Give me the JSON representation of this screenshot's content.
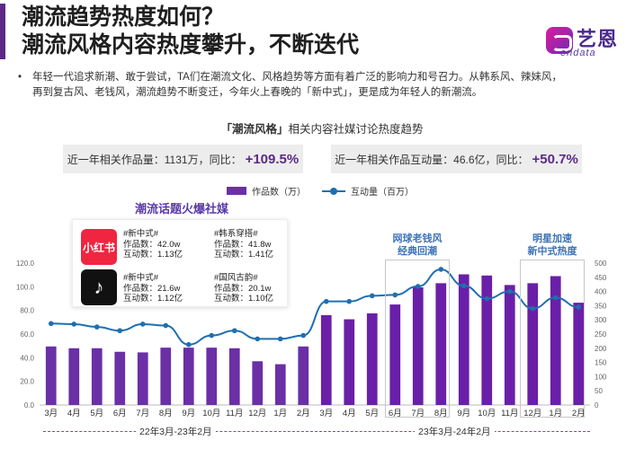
{
  "page": {
    "title_line1": "潮流趋势热度如何？",
    "title_line2": "潮流风格内容热度攀升，不断迭代",
    "logo_cn": "艺恩",
    "logo_en": "endata",
    "bullet_marker": "•",
    "bullet_line1": "年轻一代追求新潮、敢于尝试，TA们在潮流文化、风格趋势等方面有着广泛的影响力和号召力。从韩系风、辣妹风，",
    "bullet_line2": "再到复古风、老钱风，潮流趋势不断变迁，今年火上春晚的「新中式」，更是成为年轻人的新潮流。"
  },
  "chart_title": {
    "highlight": "「潮流风格」",
    "rest": "相关内容社媒讨论热度趋势"
  },
  "stats": {
    "works_label": "近一年相关作品量：1131万，同比：",
    "works_growth": "+109.5%",
    "interact_label": "近一年相关作品互动量：46.6亿，同比：",
    "interact_growth": "+50.7%"
  },
  "legend": {
    "bar_label": "作品数（万）",
    "line_label": "互动量（百万）"
  },
  "hot_topics": {
    "title": "潮流话题火爆社媒",
    "xhs_icon_text": "小红书",
    "dy_icon_text": "♪",
    "items": [
      {
        "tag": "#新中式#",
        "works": "作品数：42.0w",
        "interact": "互动数：1.13亿"
      },
      {
        "tag": "#韩系穿搭#",
        "works": "作品数：41.8w",
        "interact": "互动数：1.41亿"
      },
      {
        "tag": "#新中式#",
        "works": "作品数：21.6w",
        "interact": "互动数：1.12亿"
      },
      {
        "tag": "#国风古韵#",
        "works": "作品数：20.1w",
        "interact": "互动数：1.10亿"
      }
    ]
  },
  "annotations": [
    {
      "line1": "网球老钱风",
      "line2": "经典回潮"
    },
    {
      "line1": "明星加速",
      "line2": "新中式热度"
    }
  ],
  "periods": [
    "22年3月-23年2月",
    "23年3月-24年2月"
  ],
  "colors": {
    "bar_first_period": "#6b2fa6",
    "bar_second_period": "#6a1fa8",
    "line": "#1f6fb0",
    "accent": "#5b2a86"
  },
  "chart_data": {
    "type": "bar",
    "categories": [
      "3月",
      "4月",
      "5月",
      "6月",
      "7月",
      "8月",
      "9月",
      "10月",
      "11月",
      "12月",
      "1月",
      "2月",
      "3月",
      "4月",
      "5月",
      "6月",
      "7月",
      "8月",
      "9月",
      "10月",
      "11月",
      "12月",
      "1月",
      "2月"
    ],
    "series": [
      {
        "name": "作品数（万）",
        "type": "bar",
        "axis": "left",
        "values": [
          49.5,
          48,
          48,
          45,
          44.5,
          48.5,
          48.5,
          48.5,
          48,
          37,
          34.5,
          49.5,
          76,
          72.5,
          77.5,
          85,
          99.5,
          103,
          110.5,
          109.5,
          101.5,
          103,
          109,
          86.5
        ]
      },
      {
        "name": "互动量（百万）",
        "type": "line",
        "axis": "right",
        "values": [
          287,
          285,
          275,
          262,
          285,
          280,
          213,
          245,
          262,
          233,
          233,
          245,
          365,
          365,
          385,
          388,
          418,
          478,
          420,
          375,
          400,
          340,
          378,
          345
        ]
      }
    ],
    "yleft_ticks": [
      "0.0",
      "20.0",
      "40.0",
      "60.0",
      "80.0",
      "100.0",
      "120.0"
    ],
    "yleft_lim": [
      0,
      120
    ],
    "yright_ticks": [
      "0",
      "50",
      "100",
      "150",
      "200",
      "250",
      "300",
      "350",
      "400",
      "450",
      "500"
    ],
    "yright_lim": [
      0,
      500
    ],
    "grid": false,
    "legend_position": "top"
  }
}
